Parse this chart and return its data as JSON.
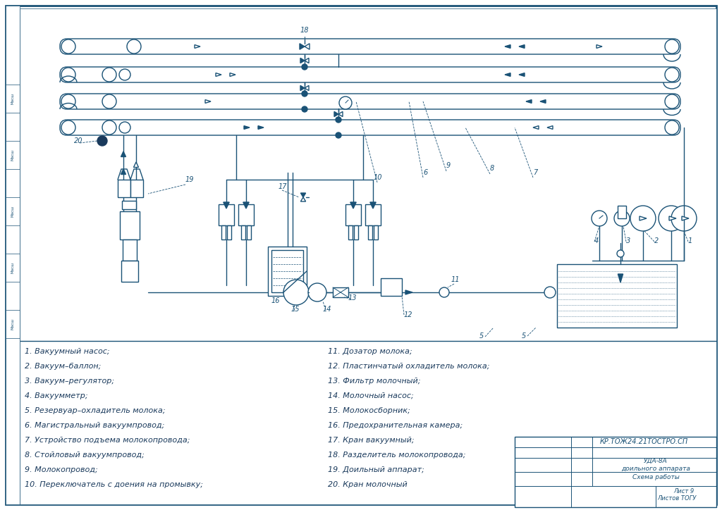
{
  "title": "Схема работы доильного аппарата УДА-8А",
  "doc_number": "КР.ТОЖ24.21ТОСТРО.СП",
  "line_color": "#1a5276",
  "bg_color": "#ffffff",
  "legend_items_left": [
    "1. Вакуумный насос;",
    "2. Вакуум–баллон;",
    "3. Вакуум–регулятор;",
    "4. Вакуумметр;",
    "5. Резервуар–охладитель молока;",
    "6. Магистральный вакуумпровод;",
    "7. Устройство подъема молокопровода;",
    "8. Стойловый вакуумпровод;",
    "9. Молокопровод;",
    "10. Переключатель с доения на промывку;"
  ],
  "legend_items_right": [
    "11. Дозатор молока;",
    "12. Пластинчатый охладитель молока;",
    "13. Фильтр молочный;",
    "14. Молочный насос;",
    "15. Молокосборник;",
    "16. Предохранительная камера;",
    "17. Кран вакуумный;",
    "18. Разделитель молокопровода;",
    "19. Доильный аппарат;",
    "20. Кран молочный"
  ]
}
